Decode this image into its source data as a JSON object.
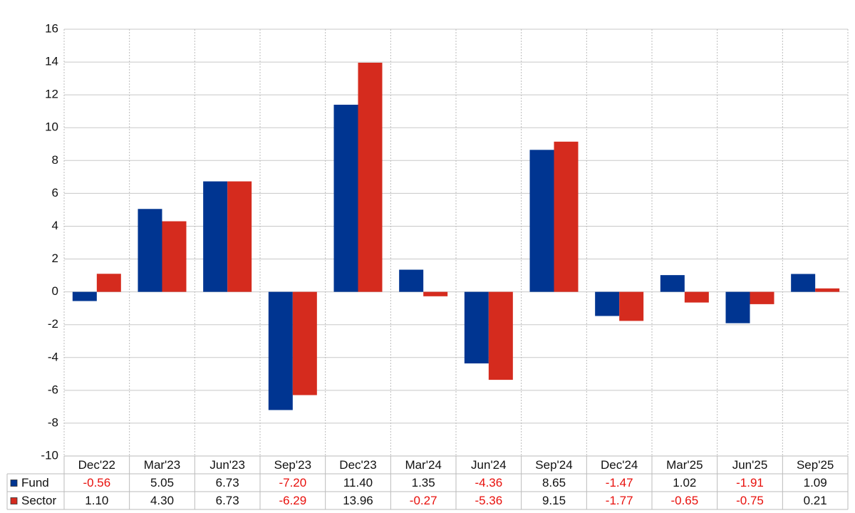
{
  "chart_data": {
    "type": "bar",
    "categories": [
      "Dec'22",
      "Mar'23",
      "Jun'23",
      "Sep'23",
      "Dec'23",
      "Mar'24",
      "Jun'24",
      "Sep'24",
      "Dec'24",
      "Mar'25",
      "Jun'25",
      "Sep'25"
    ],
    "series": [
      {
        "name": "Fund",
        "color": "#003591",
        "values": [
          -0.56,
          5.05,
          6.73,
          -7.2,
          11.4,
          1.35,
          -4.36,
          8.65,
          -1.47,
          1.02,
          -1.91,
          1.09
        ],
        "value_labels": [
          "-0.56",
          "5.05",
          "6.73",
          "-7.20",
          "11.40",
          "1.35",
          "-4.36",
          "8.65",
          "-1.47",
          "1.02",
          "-1.91",
          "1.09"
        ]
      },
      {
        "name": "Sector",
        "color": "#d52b1e",
        "values": [
          1.1,
          4.3,
          6.73,
          -6.29,
          13.96,
          -0.27,
          -5.36,
          9.15,
          -1.77,
          -0.65,
          -0.75,
          0.21
        ],
        "value_labels": [
          "1.10",
          "4.30",
          "6.73",
          "-6.29",
          "13.96",
          "-0.27",
          "-5.36",
          "9.15",
          "-1.77",
          "-0.65",
          "-0.75",
          "0.21"
        ]
      }
    ],
    "ylim": [
      -10,
      16
    ],
    "yticks": [
      -10,
      -8,
      -6,
      -4,
      -2,
      0,
      2,
      4,
      6,
      8,
      10,
      12,
      14,
      16
    ],
    "grid": true,
    "negative_label_color": "#e8100c"
  }
}
